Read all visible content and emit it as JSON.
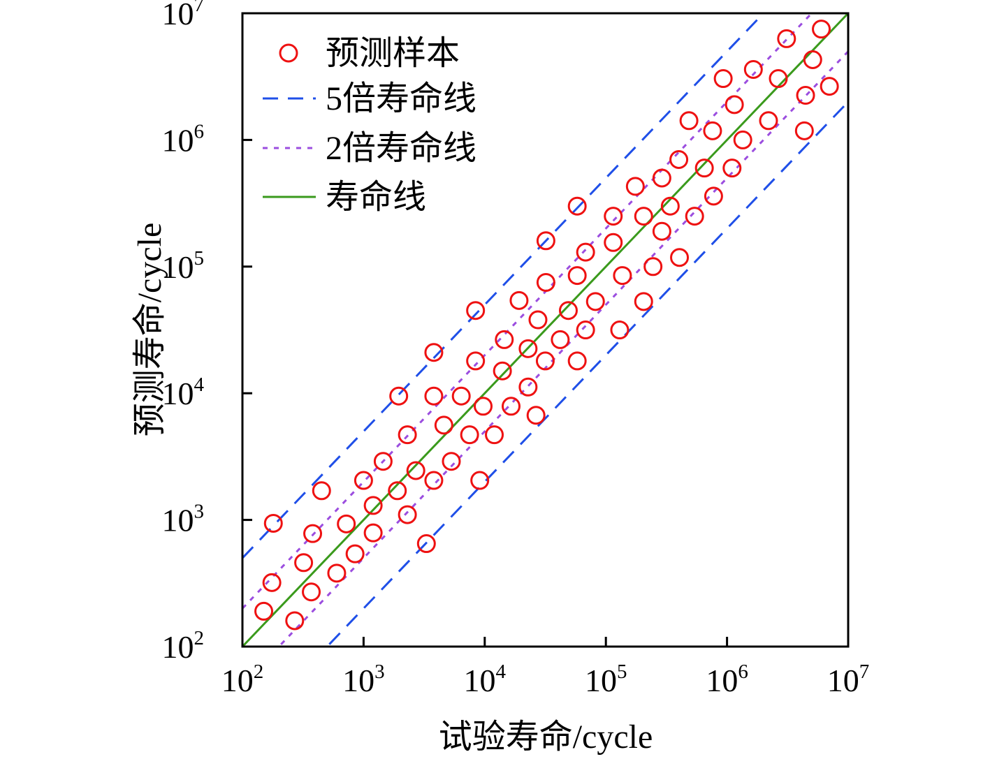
{
  "chart_data": {
    "type": "scatter",
    "xlabel": "试验寿命/cycle",
    "ylabel": "预测寿命/cycle",
    "xscale": "log",
    "yscale": "log",
    "xlim": [
      100,
      10000000
    ],
    "ylim": [
      100,
      10000000
    ],
    "ticks": [
      {
        "base": "10",
        "exp": "2",
        "value": 100
      },
      {
        "base": "10",
        "exp": "3",
        "value": 1000
      },
      {
        "base": "10",
        "exp": "4",
        "value": 10000
      },
      {
        "base": "10",
        "exp": "5",
        "value": 100000
      },
      {
        "base": "10",
        "exp": "6",
        "value": 1000000
      },
      {
        "base": "10",
        "exp": "7",
        "value": 10000000
      }
    ],
    "legend_position": "top-left",
    "legend": {
      "samples": "预测样本",
      "band5": "5倍寿命线",
      "band2": "2倍寿命线",
      "life": "寿命线"
    },
    "lines": [
      {
        "key": "band5",
        "factor": 5,
        "style": "dashed",
        "color": "#1f4fe8"
      },
      {
        "key": "band2",
        "factor": 2,
        "style": "dotted",
        "color": "#9b4ddf"
      },
      {
        "key": "life",
        "factor": 1,
        "style": "solid",
        "color": "#3a9a1c"
      }
    ],
    "marker_color": "#ee1111",
    "points": [
      [
        150,
        190
      ],
      [
        175,
        320
      ],
      [
        180,
        940
      ],
      [
        270,
        160
      ],
      [
        320,
        460
      ],
      [
        370,
        270
      ],
      [
        380,
        780
      ],
      [
        450,
        1700
      ],
      [
        600,
        380
      ],
      [
        720,
        930
      ],
      [
        850,
        540
      ],
      [
        1000,
        2050
      ],
      [
        1200,
        790
      ],
      [
        1200,
        1300
      ],
      [
        1450,
        2900
      ],
      [
        1900,
        1700
      ],
      [
        1950,
        9500
      ],
      [
        2300,
        1100
      ],
      [
        2300,
        4700
      ],
      [
        2700,
        2450
      ],
      [
        3300,
        650
      ],
      [
        3800,
        2050
      ],
      [
        3800,
        9500
      ],
      [
        3800,
        21000
      ],
      [
        4600,
        5600
      ],
      [
        5300,
        2900
      ],
      [
        6400,
        9500
      ],
      [
        7500,
        4700
      ],
      [
        8400,
        18000
      ],
      [
        8400,
        45000
      ],
      [
        9100,
        2050
      ],
      [
        9700,
        7900
      ],
      [
        12000,
        4700
      ],
      [
        14000,
        15000
      ],
      [
        14500,
        26500
      ],
      [
        16500,
        7900
      ],
      [
        19200,
        54000
      ],
      [
        22800,
        11200
      ],
      [
        22800,
        22500
      ],
      [
        26500,
        6700
      ],
      [
        27500,
        38000
      ],
      [
        31600,
        18000
      ],
      [
        32000,
        75000
      ],
      [
        32000,
        160000
      ],
      [
        42000,
        26500
      ],
      [
        49000,
        45000
      ],
      [
        58000,
        18000
      ],
      [
        58000,
        85000
      ],
      [
        58000,
        300000
      ],
      [
        68000,
        130000
      ],
      [
        68000,
        31600
      ],
      [
        82000,
        53000
      ],
      [
        115000,
        155000
      ],
      [
        115000,
        250000
      ],
      [
        130000,
        31600
      ],
      [
        137000,
        85000
      ],
      [
        175000,
        430000
      ],
      [
        205000,
        250000
      ],
      [
        205000,
        53000
      ],
      [
        245000,
        100000
      ],
      [
        290000,
        500000
      ],
      [
        290000,
        190000
      ],
      [
        340000,
        300000
      ],
      [
        400000,
        700000
      ],
      [
        405000,
        118000
      ],
      [
        485000,
        1420000
      ],
      [
        540000,
        250000
      ],
      [
        650000,
        600000
      ],
      [
        760000,
        1180000
      ],
      [
        775000,
        360000
      ],
      [
        930000,
        3050000
      ],
      [
        1100000,
        600000
      ],
      [
        1150000,
        1900000
      ],
      [
        1350000,
        1000000
      ],
      [
        1650000,
        3600000
      ],
      [
        2200000,
        1420000
      ],
      [
        2650000,
        3050000
      ],
      [
        3100000,
        6300000
      ],
      [
        4350000,
        1180000
      ],
      [
        4450000,
        2250000
      ],
      [
        5100000,
        4300000
      ],
      [
        6000000,
        7500000
      ],
      [
        7000000,
        2650000
      ]
    ]
  }
}
